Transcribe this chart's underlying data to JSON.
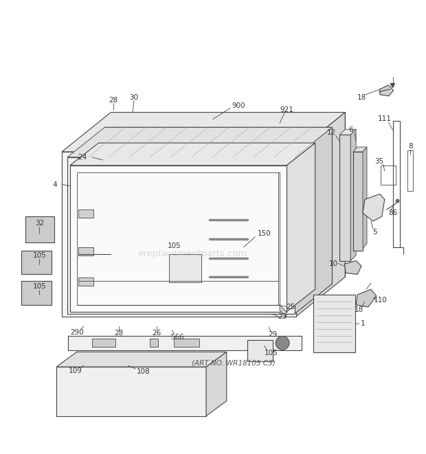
{
  "bg_color": "#ffffff",
  "line_color": "#444444",
  "text_color": "#333333",
  "watermark": "ereplacementparts.com",
  "art_no": "(ART NO. WR18105 C3)"
}
